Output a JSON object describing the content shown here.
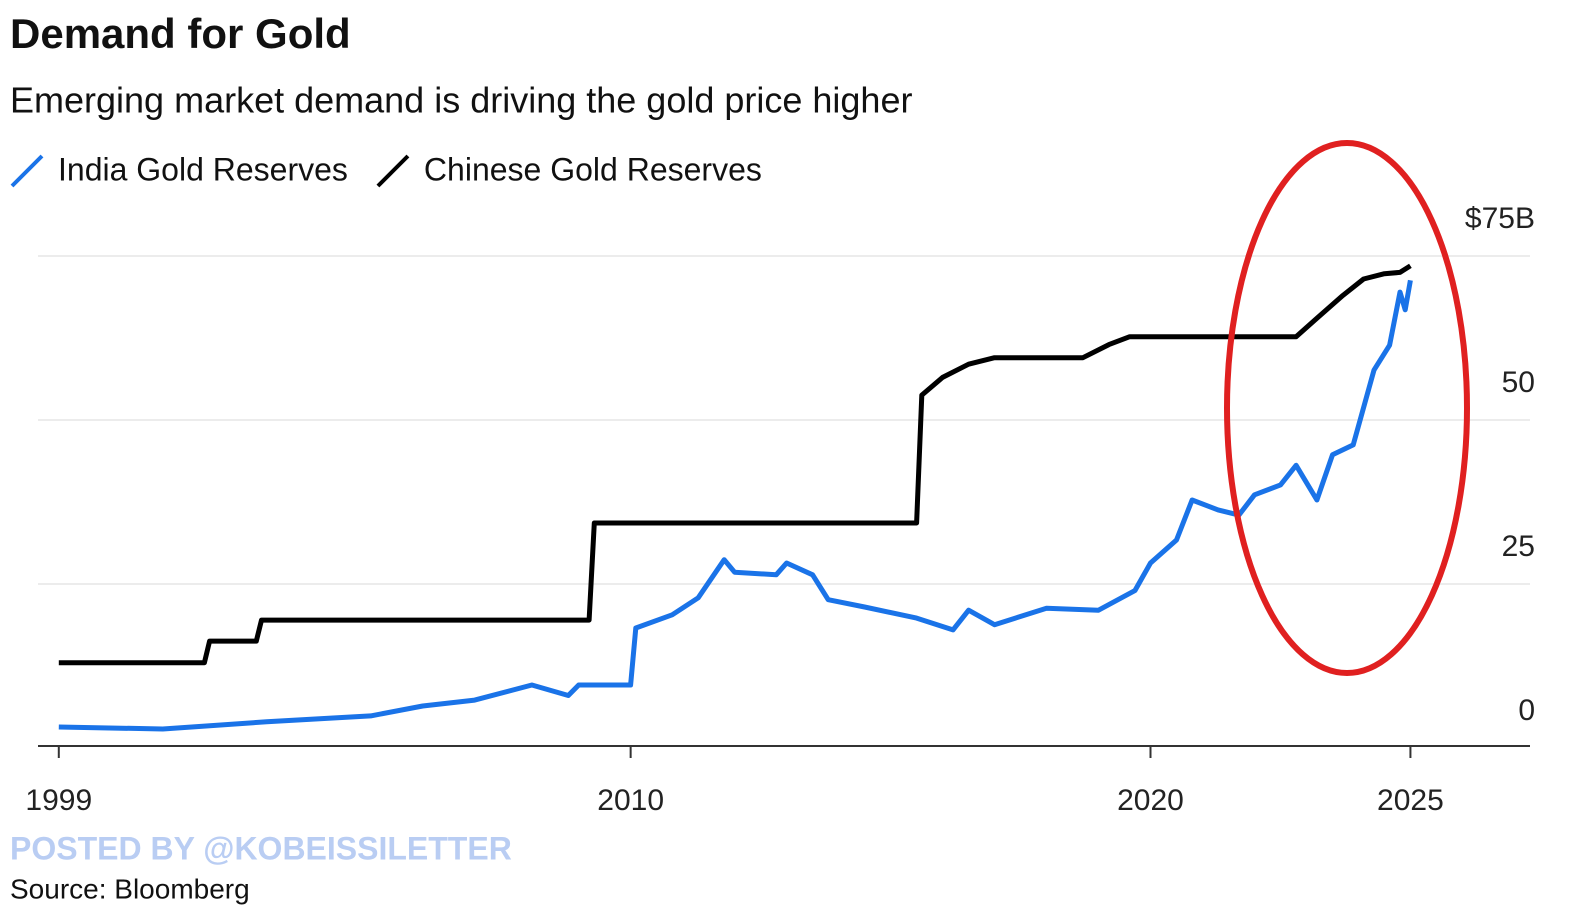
{
  "chart_data": {
    "type": "line",
    "title": "Demand for Gold",
    "subtitle": "Emerging market demand is driving the gold price higher",
    "watermark": "POSTED BY @KOBEISSILETTER",
    "source": "Source: Bloomberg",
    "xlim": [
      1998.6,
      2027.3
    ],
    "xticks": [
      1999,
      2010,
      2020,
      2025
    ],
    "ylim": [
      0,
      75
    ],
    "yticks": [
      0,
      25,
      50,
      {
        "value": 75,
        "label": "$75B"
      }
    ],
    "grid": true,
    "series": [
      {
        "name": "India Gold Reserves",
        "color": "#1a73e8",
        "x": [
          1999,
          2001,
          2003,
          2005,
          2006,
          2007,
          2008.1,
          2008.8,
          2009,
          2010,
          2010.1,
          2010.8,
          2011.3,
          2011.8,
          2012,
          2012.8,
          2013,
          2013.5,
          2013.8,
          2014.5,
          2015.5,
          2016.2,
          2016.5,
          2017,
          2018,
          2019,
          2019.7,
          2020,
          2020.5,
          2020.8,
          2021.3,
          2021.7,
          2022,
          2022.5,
          2022.8,
          2023.2,
          2023.5,
          2023.9,
          2024.3,
          2024.6,
          2024.8,
          2024.9,
          2025
        ],
        "values": [
          3.2,
          2.9,
          4,
          4.9,
          6.4,
          7.3,
          9.6,
          8,
          9.6,
          9.6,
          18.3,
          20.3,
          22.9,
          28.7,
          26.8,
          26.4,
          28.2,
          26.4,
          22.6,
          21.5,
          19.8,
          18,
          21,
          18.8,
          21.3,
          21,
          24,
          28.2,
          31.7,
          37.8,
          36.3,
          35.5,
          38.6,
          40.1,
          43.1,
          37.8,
          44.7,
          46.2,
          57.6,
          61.4,
          69.5,
          66.8,
          71.3
        ]
      },
      {
        "name": "Chinese Gold Reserves",
        "color": "#000000",
        "x": [
          1999,
          2001.8,
          2001.9,
          2002.8,
          2002.9,
          2009.2,
          2009.3,
          2015.5,
          2015.6,
          2016,
          2016.5,
          2017,
          2018.7,
          2019.2,
          2019.6,
          2022.8,
          2023.2,
          2023.7,
          2024.1,
          2024.5,
          2024.8,
          2025
        ],
        "values": [
          13,
          13,
          16.3,
          16.3,
          19.5,
          19.5,
          34.3,
          34.3,
          53.8,
          56.5,
          58.5,
          59.5,
          59.5,
          61.5,
          62.7,
          62.7,
          65.5,
          69,
          71.5,
          72.3,
          72.5,
          73.5
        ]
      }
    ]
  }
}
